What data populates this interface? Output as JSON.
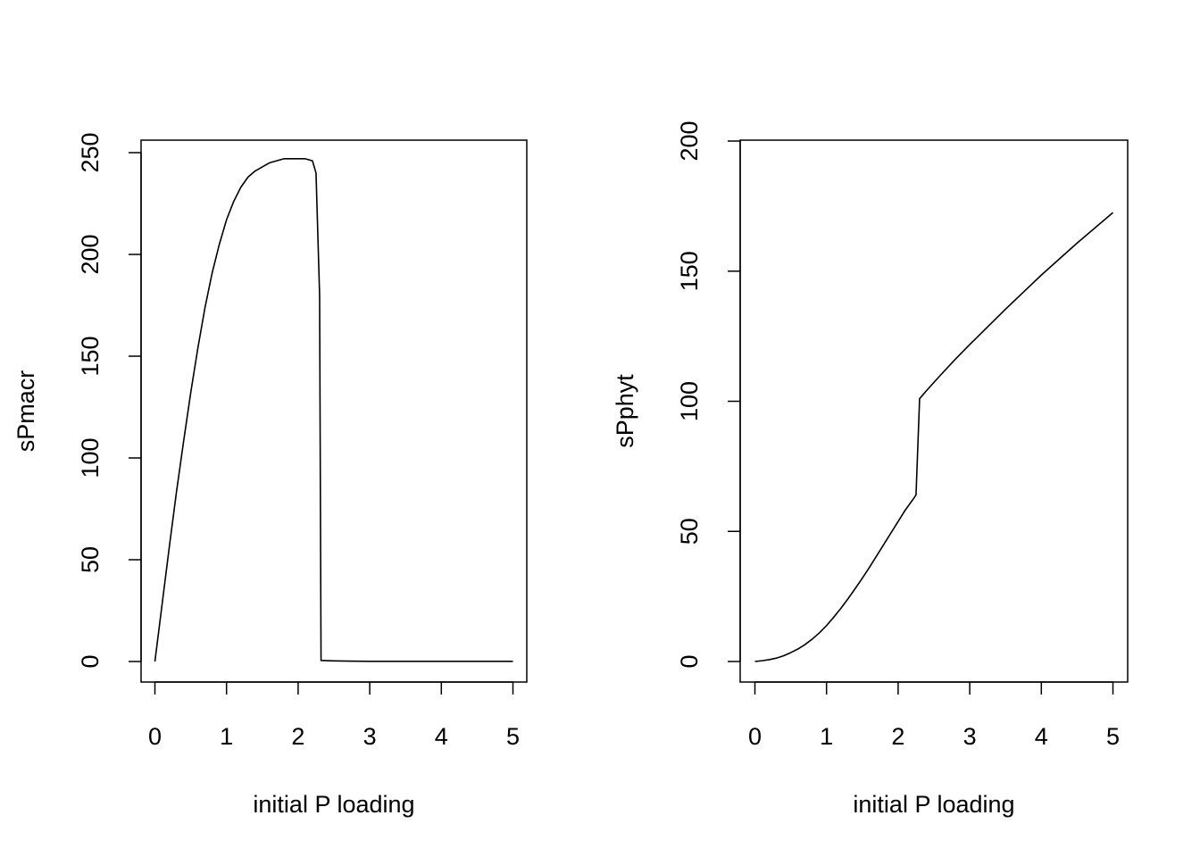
{
  "chart_data": [
    {
      "type": "line",
      "xlabel": "initial P loading",
      "ylabel": "sPmacr",
      "xlim": [
        0,
        5
      ],
      "ylim": [
        0,
        250
      ],
      "xticks": [
        "0",
        "1",
        "2",
        "3",
        "4",
        "5"
      ],
      "yticks": [
        "0",
        "50",
        "100",
        "150",
        "200",
        "250"
      ],
      "series": [
        {
          "x": [
            0,
            0.1,
            0.2,
            0.3,
            0.4,
            0.5,
            0.6,
            0.7,
            0.8,
            0.9,
            1.0,
            1.1,
            1.2,
            1.3,
            1.4,
            1.5,
            1.6,
            1.7,
            1.8,
            1.9,
            2.0,
            2.1,
            2.2,
            2.25,
            2.3,
            2.32,
            2.4,
            2.5,
            2.7,
            3.0,
            3.5,
            4.0,
            4.5,
            5.0
          ],
          "y": [
            0,
            28,
            56,
            83,
            108,
            132,
            154,
            174,
            191,
            205,
            217,
            226,
            233,
            238,
            241,
            243,
            245,
            246,
            247,
            247,
            247,
            247,
            246,
            240,
            180,
            0.5,
            0.4,
            0.3,
            0.2,
            0.1,
            0.1,
            0.1,
            0.1,
            0.1
          ]
        }
      ],
      "grid": false,
      "color": "#000000"
    },
    {
      "type": "line",
      "xlabel": "initial P loading",
      "ylabel": "sPphyt",
      "xlim": [
        0,
        5
      ],
      "ylim": [
        0,
        200
      ],
      "xticks": [
        "0",
        "1",
        "2",
        "3",
        "4",
        "5"
      ],
      "yticks": [
        "0",
        "50",
        "100",
        "150",
        "200"
      ],
      "series": [
        {
          "x": [
            0,
            0.1,
            0.2,
            0.3,
            0.4,
            0.5,
            0.6,
            0.7,
            0.8,
            0.9,
            1.0,
            1.1,
            1.2,
            1.3,
            1.4,
            1.5,
            1.6,
            1.7,
            1.8,
            1.9,
            2.0,
            2.1,
            2.2,
            2.25,
            2.3,
            2.4,
            2.6,
            2.8,
            3.0,
            3.5,
            4.0,
            4.5,
            5.0
          ],
          "y": [
            0,
            0.3,
            0.7,
            1.3,
            2.2,
            3.4,
            4.8,
            6.5,
            8.6,
            11.0,
            13.8,
            17.0,
            20.4,
            24.1,
            28.0,
            32.0,
            36.2,
            40.6,
            45.0,
            49.4,
            53.8,
            58.2,
            62.0,
            64.0,
            101.0,
            104.2,
            110.3,
            116.2,
            121.8,
            135.4,
            148.5,
            160.8,
            172.5
          ]
        }
      ],
      "grid": false,
      "color": "#000000"
    }
  ]
}
